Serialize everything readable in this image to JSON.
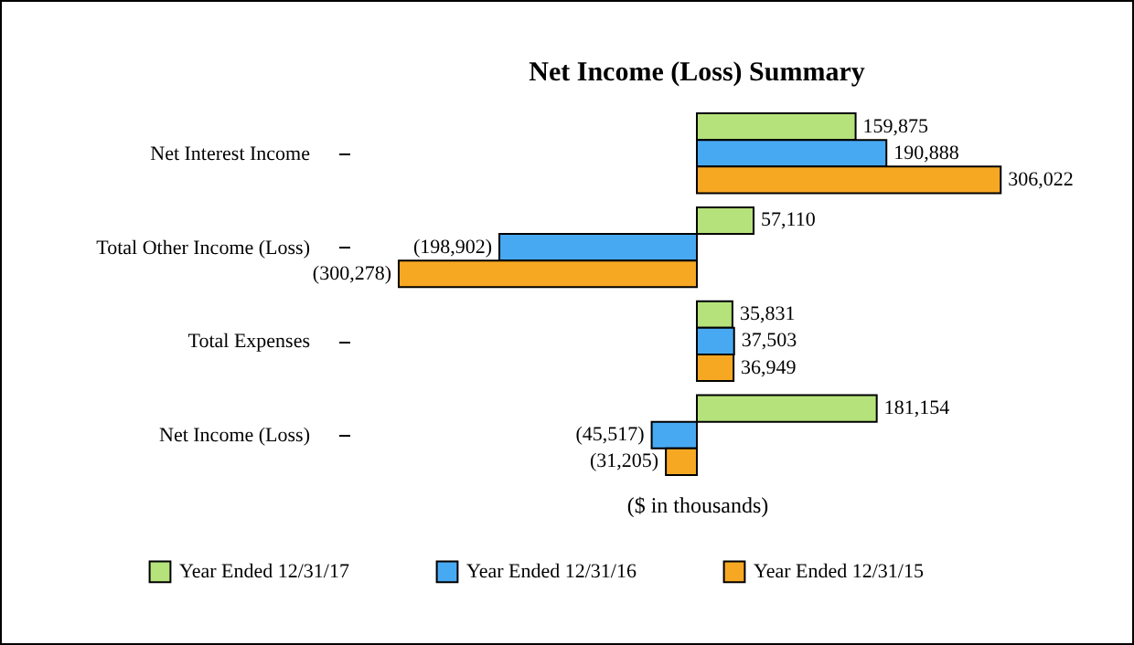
{
  "chart_data": {
    "type": "bar",
    "orientation": "horizontal",
    "title": "Net Income (Loss) Summary",
    "categories": [
      "Net Interest Income",
      "Total Other Income (Loss)",
      "Total Expenses",
      "Net Income (Loss)"
    ],
    "series": [
      {
        "name": "Year Ended 12/31/17",
        "color": "#b5e27b",
        "values": [
          159875,
          57110,
          35831,
          181154
        ],
        "value_labels": [
          "159,875",
          "57,110",
          "35,831",
          "181,154"
        ]
      },
      {
        "name": "Year Ended 12/31/16",
        "color": "#48a9f3",
        "values": [
          190888,
          -198902,
          37503,
          -45517
        ],
        "value_labels": [
          "190,888",
          "(198,902)",
          "37,503",
          "(45,517)"
        ]
      },
      {
        "name": "Year Ended 12/31/15",
        "color": "#f7a823",
        "values": [
          306022,
          -300278,
          36949,
          -31205
        ],
        "value_labels": [
          "306,022",
          "(300,278)",
          "36,949",
          "(31,205)"
        ]
      }
    ],
    "annotations": [
      "($ in thousands)"
    ],
    "legend": "bottom",
    "grid": false
  }
}
